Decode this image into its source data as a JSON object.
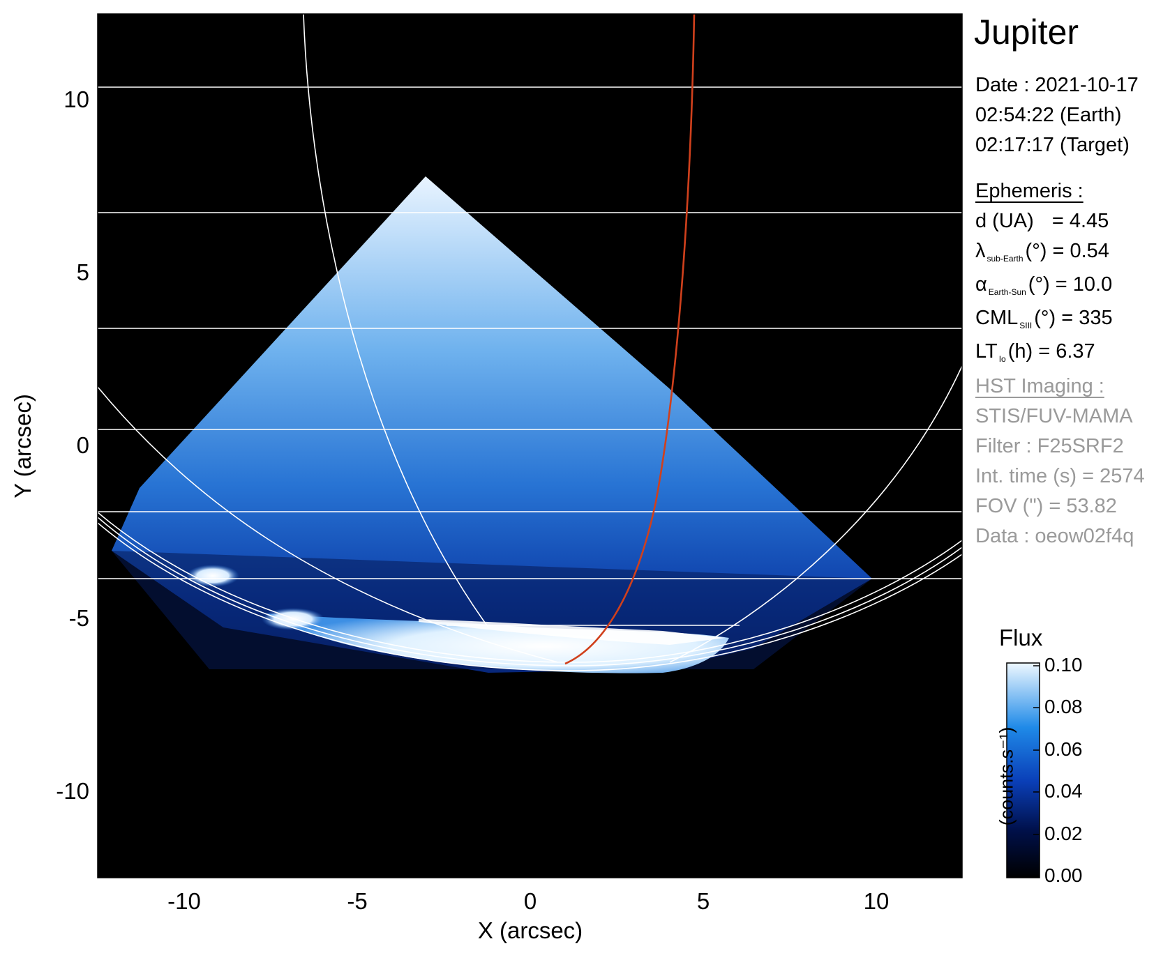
{
  "title": "Jupiter",
  "date": {
    "label": "Date : 2021-10-17",
    "earth_time": "02:54:22 (Earth)",
    "target_time": "02:17:17 (Target)"
  },
  "ephemeris": {
    "heading": "Ephemeris :",
    "d_label": "d (UA)",
    "d_value": "= 4.45",
    "lambda_symbol": "λ",
    "lambda_sub": "sub-Earth",
    "lambda_value": "(°) = 0.54",
    "alpha_symbol": "α",
    "alpha_sub": "Earth-Sun",
    "alpha_value": "(°) = 10.0",
    "cml_symbol": "CML",
    "cml_sub": "SIII",
    "cml_value": "(°) = 335",
    "lt_symbol": "LT",
    "lt_sub": "Io",
    "lt_value": "(h) = 6.37"
  },
  "hst": {
    "heading": "HST Imaging :",
    "instrument": "STIS/FUV-MAMA",
    "filter": "Filter : F25SRF2",
    "int_time": "Int. time (s) = 2574",
    "fov": "FOV (\") = 53.82",
    "data": "Data : oeow02f4q"
  },
  "axes": {
    "xlabel": "X (arcsec)",
    "ylabel": "Y (arcsec)",
    "x_range": [
      -12.5,
      12.5
    ],
    "y_range": [
      -12.5,
      12.5
    ],
    "x_ticks": [
      "-10",
      "-5",
      "0",
      "5",
      "10"
    ],
    "y_ticks": [
      "10",
      "5",
      "0",
      "-5",
      "-10"
    ]
  },
  "colorbar": {
    "title": "Flux",
    "unit": "(counts.s⁻¹)",
    "ticks": [
      "0.10",
      "0.08",
      "0.06",
      "0.04",
      "0.02",
      "0.00"
    ],
    "colors": [
      "#000000",
      "#00104a",
      "#0a3fb8",
      "#1f8ae8",
      "#e9f6ff"
    ]
  },
  "overlay": {
    "grid_color": "#ffffff",
    "io_footprint_color": "#d0401c"
  }
}
